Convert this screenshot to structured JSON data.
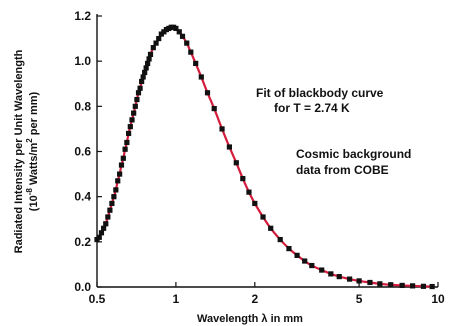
{
  "chart_data": {
    "type": "scatter",
    "xscale": "log",
    "xlim": [
      0.5,
      10
    ],
    "ylim": [
      0.0,
      1.2
    ],
    "x_ticks": [
      0.5,
      1,
      2,
      5,
      10
    ],
    "x_tick_labels": [
      "0.5",
      "1",
      "2",
      "5",
      "10"
    ],
    "y_ticks": [
      0.0,
      0.2,
      0.4,
      0.6,
      0.8,
      1.0,
      1.2
    ],
    "y_tick_labels": [
      "0.0",
      "0.2",
      "0.4",
      "0.6",
      "0.8",
      "1.0",
      "1.2"
    ],
    "xlabel": "Wavelength λ in mm",
    "ylabel_line1": "Radiated Intensity per Unit Wavelength",
    "ylabel_line2_prefix": "(10",
    "ylabel_line2_exp": "-8",
    "ylabel_line2_mid": " Watts/m",
    "ylabel_line2_exp2": "2",
    "ylabel_line2_suffix": " per mm)",
    "annotations": [
      {
        "lines": [
          "Fit of blackbody curve",
          "for T = 2.74 K"
        ]
      },
      {
        "lines": [
          "Cosmic background",
          "data from COBE"
        ]
      }
    ],
    "fit": {
      "name": "Fit of blackbody curve",
      "T_K": 2.74,
      "color": "#d41c3c"
    },
    "data_series": {
      "name": "Cosmic background data from COBE",
      "marker_color": "#111111"
    },
    "points": {
      "x": [
        0.5,
        0.51,
        0.52,
        0.53,
        0.54,
        0.55,
        0.56,
        0.57,
        0.58,
        0.59,
        0.6,
        0.61,
        0.62,
        0.63,
        0.64,
        0.65,
        0.66,
        0.67,
        0.68,
        0.69,
        0.7,
        0.71,
        0.72,
        0.73,
        0.74,
        0.75,
        0.76,
        0.77,
        0.78,
        0.79,
        0.8,
        0.82,
        0.84,
        0.86,
        0.88,
        0.9,
        0.92,
        0.94,
        0.96,
        0.98,
        1.0,
        1.03,
        1.06,
        1.1,
        1.14,
        1.19,
        1.25,
        1.32,
        1.4,
        1.5,
        1.6,
        1.7,
        1.8,
        1.9,
        2.0,
        2.15,
        2.3,
        2.5,
        2.7,
        2.9,
        3.1,
        3.3,
        3.6,
        3.9,
        4.2,
        4.6,
        5.0,
        5.5,
        6.0,
        6.6,
        7.3,
        8.0,
        8.8,
        9.5
      ],
      "y": [
        0.21,
        0.22,
        0.24,
        0.26,
        0.28,
        0.31,
        0.34,
        0.37,
        0.4,
        0.43,
        0.47,
        0.5,
        0.54,
        0.57,
        0.61,
        0.64,
        0.68,
        0.71,
        0.74,
        0.77,
        0.8,
        0.83,
        0.86,
        0.88,
        0.91,
        0.93,
        0.95,
        0.97,
        0.99,
        1.01,
        1.03,
        1.06,
        1.08,
        1.1,
        1.12,
        1.13,
        1.14,
        1.145,
        1.15,
        1.15,
        1.145,
        1.13,
        1.11,
        1.08,
        1.04,
        0.99,
        0.93,
        0.86,
        0.79,
        0.7,
        0.62,
        0.55,
        0.48,
        0.42,
        0.37,
        0.31,
        0.26,
        0.21,
        0.17,
        0.14,
        0.115,
        0.095,
        0.075,
        0.058,
        0.046,
        0.035,
        0.027,
        0.02,
        0.014,
        0.01,
        0.007,
        0.005,
        0.003,
        0.002
      ]
    }
  }
}
